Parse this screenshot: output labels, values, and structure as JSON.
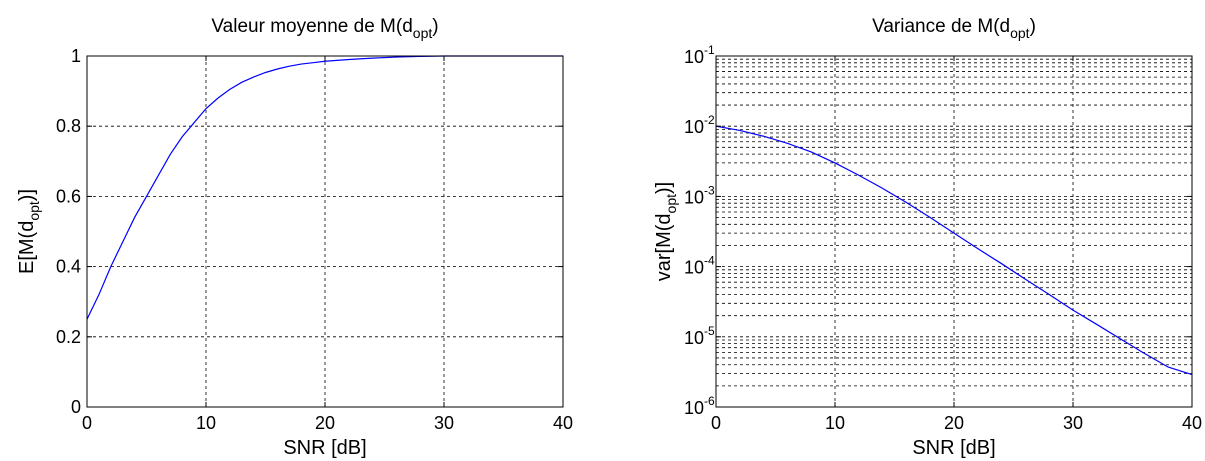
{
  "chart_data": [
    {
      "type": "line",
      "title": "Valeur moyenne de M(d",
      "title_sub": "opt",
      "title_suffix": ")",
      "xlabel": "SNR [dB]",
      "ylabel": "E[M(d",
      "ylabel_sub": "opt",
      "ylabel_suffix": ")]",
      "xlim": [
        0,
        40
      ],
      "ylim": [
        0,
        1
      ],
      "yscale": "linear",
      "grid": true,
      "xticks": [
        0,
        10,
        20,
        30,
        40
      ],
      "xtick_labels": [
        "0",
        "10",
        "20",
        "30",
        "40"
      ],
      "yticks": [
        0,
        0.2,
        0.4,
        0.6,
        0.8,
        1
      ],
      "ytick_labels": [
        "0",
        "0.2",
        "0.4",
        "0.6",
        "0.8",
        "1"
      ],
      "series": [
        {
          "color": "#0000ff",
          "x": [
            0,
            1,
            2,
            3,
            4,
            5,
            6,
            7,
            8,
            9,
            10,
            11,
            12,
            13,
            14,
            15,
            16,
            17,
            18,
            19,
            20,
            22,
            24,
            26,
            28,
            30,
            32,
            34,
            36,
            38,
            40
          ],
          "y": [
            0.25,
            0.32,
            0.4,
            0.47,
            0.54,
            0.6,
            0.66,
            0.72,
            0.77,
            0.81,
            0.85,
            0.88,
            0.905,
            0.925,
            0.94,
            0.953,
            0.963,
            0.971,
            0.977,
            0.981,
            0.985,
            0.99,
            0.994,
            0.997,
            0.999,
            1.0,
            1.0,
            1.0,
            1.0,
            1.0,
            1.0
          ]
        }
      ]
    },
    {
      "type": "line",
      "title": "Variance de M(d",
      "title_sub": "opt",
      "title_suffix": ")",
      "xlabel": "SNR [dB]",
      "ylabel": "var[M(d",
      "ylabel_sub": "opt",
      "ylabel_suffix": ")]",
      "xlim": [
        0,
        40
      ],
      "ylim": [
        1e-06,
        0.1
      ],
      "yscale": "log",
      "grid": true,
      "xticks": [
        0,
        10,
        20,
        30,
        40
      ],
      "xtick_labels": [
        "0",
        "10",
        "20",
        "30",
        "40"
      ],
      "yticks": [
        1e-06,
        1e-05,
        0.0001,
        0.001,
        0.01,
        0.1
      ],
      "ytick_bases": [
        "10",
        "10",
        "10",
        "10",
        "10",
        "10"
      ],
      "ytick_exponents": [
        "-6",
        "-5",
        "-4",
        "-3",
        "-2",
        "-1"
      ],
      "series": [
        {
          "color": "#0000ff",
          "x": [
            0,
            2,
            4,
            6,
            8,
            10,
            12,
            14,
            16,
            18,
            20,
            22,
            24,
            26,
            28,
            30,
            32,
            34,
            36,
            38,
            40
          ],
          "y": [
            0.01,
            0.0087,
            0.0072,
            0.0057,
            0.0043,
            0.003,
            0.002,
            0.0013,
            0.00082,
            0.0005,
            0.0003,
            0.00018,
            0.00011,
            6.6e-05,
            4e-05,
            2.4e-05,
            1.5e-05,
            9.3e-06,
            5.8e-06,
            3.7e-06,
            2.9e-06
          ]
        }
      ]
    }
  ]
}
